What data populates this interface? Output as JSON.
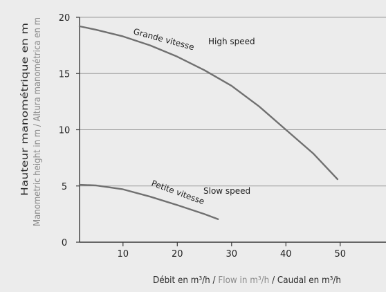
{
  "chart_data": {
    "type": "line",
    "title": "",
    "xlim": [
      2,
      60
    ],
    "ylim": [
      0,
      20
    ],
    "grid": "horizontal",
    "x_ticks": [
      10,
      20,
      30,
      40,
      50
    ],
    "y_ticks": [
      0,
      5,
      10,
      15,
      20
    ],
    "x_tick_labels": [
      "10",
      "20",
      "30",
      "40",
      "50"
    ],
    "y_tick_labels": [
      "0",
      "5",
      "10",
      "15",
      "20"
    ],
    "ylabel_fr": "Hauteur manométrique en m",
    "ylabel_en_es": "Manometric height in m / Altura manométrica en m",
    "xlabel": {
      "fr": "Débit en m³/h",
      "sep1": " / ",
      "en": "Flow in m³/h",
      "sep2": " / ",
      "es": "Caudal en m³/h"
    },
    "series": [
      {
        "name": "Grande vitesse",
        "label_en": "High speed",
        "color": "#707070",
        "x": [
          2,
          5,
          10,
          15,
          20,
          25,
          30,
          35,
          40,
          45,
          49.5
        ],
        "y": [
          19.2,
          18.9,
          18.3,
          17.5,
          16.5,
          15.3,
          13.9,
          12.1,
          10.0,
          7.9,
          5.6
        ]
      },
      {
        "name": "Petite vitesse",
        "label_en": "Slow speed",
        "color": "#707070",
        "x": [
          2,
          5,
          10,
          15,
          20,
          25,
          27.5
        ],
        "y": [
          5.1,
          5.05,
          4.7,
          4.05,
          3.3,
          2.5,
          2.05
        ]
      }
    ]
  }
}
